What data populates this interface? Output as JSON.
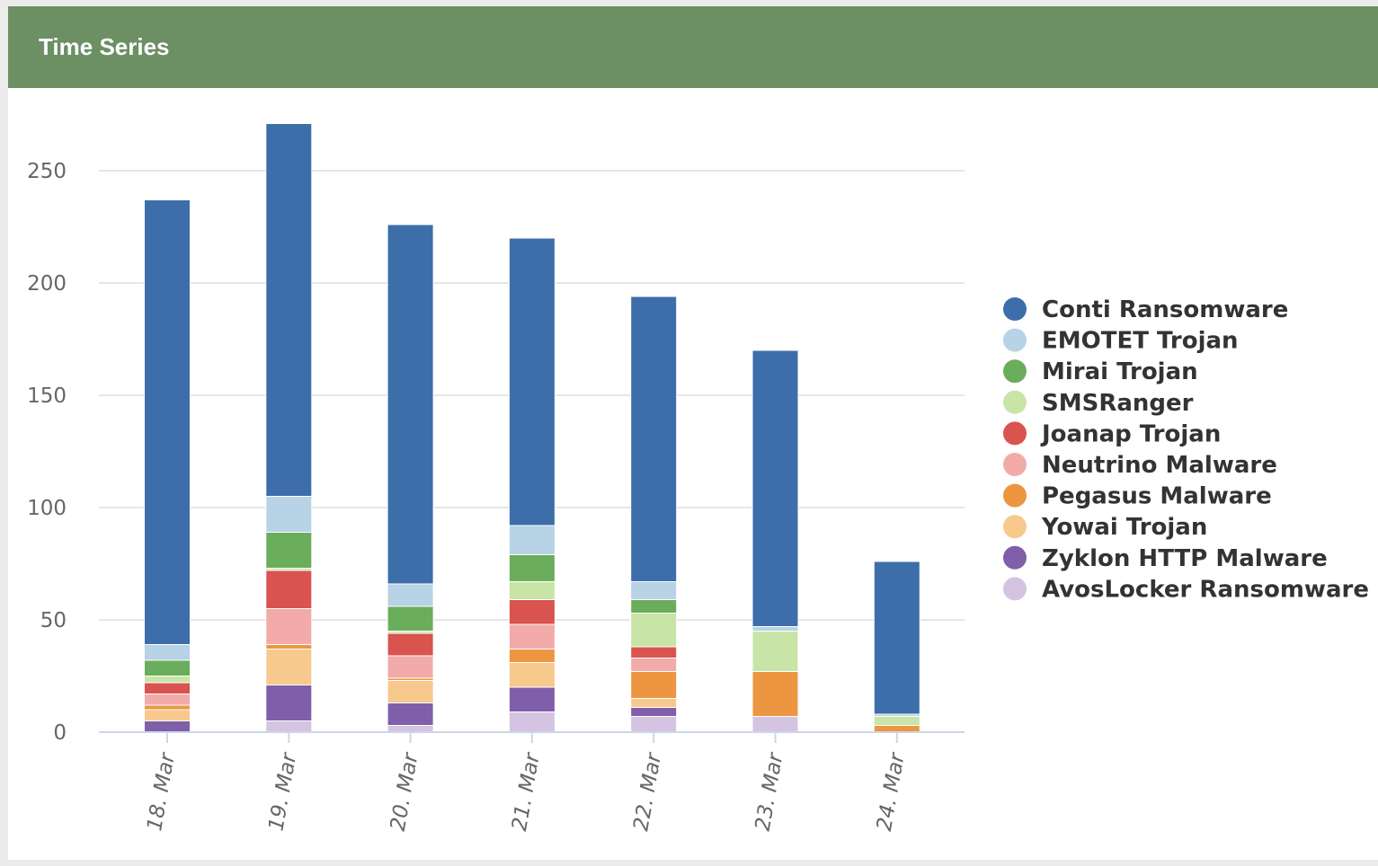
{
  "panel": {
    "title": "Time Series"
  },
  "colors": {
    "header_bg": "#6c8f64",
    "grid": "#e6e6e6",
    "axis": "#ccd6eb"
  },
  "chart_data": {
    "type": "bar",
    "stacked": true,
    "title": "",
    "xlabel": "",
    "ylabel": "",
    "ylim": [
      0,
      270
    ],
    "yticks": [
      0,
      50,
      100,
      150,
      200,
      250
    ],
    "grid": true,
    "legend_position": "right",
    "categories": [
      "18. Mar",
      "19. Mar",
      "20. Mar",
      "21. Mar",
      "22. Mar",
      "23. Mar",
      "24. Mar"
    ],
    "series": [
      {
        "name": "AvosLocker Ransomware",
        "color": "#d4c4e1",
        "values": [
          0,
          5,
          3,
          9,
          7,
          7,
          0
        ]
      },
      {
        "name": "Zyklon HTTP Malware",
        "color": "#7f5fa9",
        "values": [
          5,
          16,
          10,
          11,
          4,
          0,
          0
        ]
      },
      {
        "name": "Yowai Trojan",
        "color": "#f7c98c",
        "values": [
          5,
          16,
          10,
          11,
          4,
          0,
          0
        ]
      },
      {
        "name": "Pegasus Malware",
        "color": "#ec9641",
        "values": [
          2,
          2,
          1,
          6,
          12,
          20,
          3
        ]
      },
      {
        "name": "Neutrino Malware",
        "color": "#f2aba9",
        "values": [
          5,
          16,
          10,
          11,
          6,
          0,
          0
        ]
      },
      {
        "name": "Joanap Trojan",
        "color": "#d9534f",
        "values": [
          5,
          17,
          10,
          11,
          5,
          0,
          0
        ]
      },
      {
        "name": "SMSRanger",
        "color": "#c8e5a7",
        "values": [
          3,
          1,
          1,
          8,
          15,
          18,
          4
        ]
      },
      {
        "name": "Mirai Trojan",
        "color": "#6aad5c",
        "values": [
          7,
          16,
          11,
          12,
          6,
          0,
          0
        ]
      },
      {
        "name": "EMOTET Trojan",
        "color": "#b8d2e6",
        "values": [
          7,
          16,
          10,
          13,
          8,
          2,
          1
        ]
      },
      {
        "name": "Conti Ransomware",
        "color": "#3d6ea9",
        "values": [
          198,
          166,
          160,
          128,
          127,
          123,
          68
        ]
      }
    ]
  }
}
